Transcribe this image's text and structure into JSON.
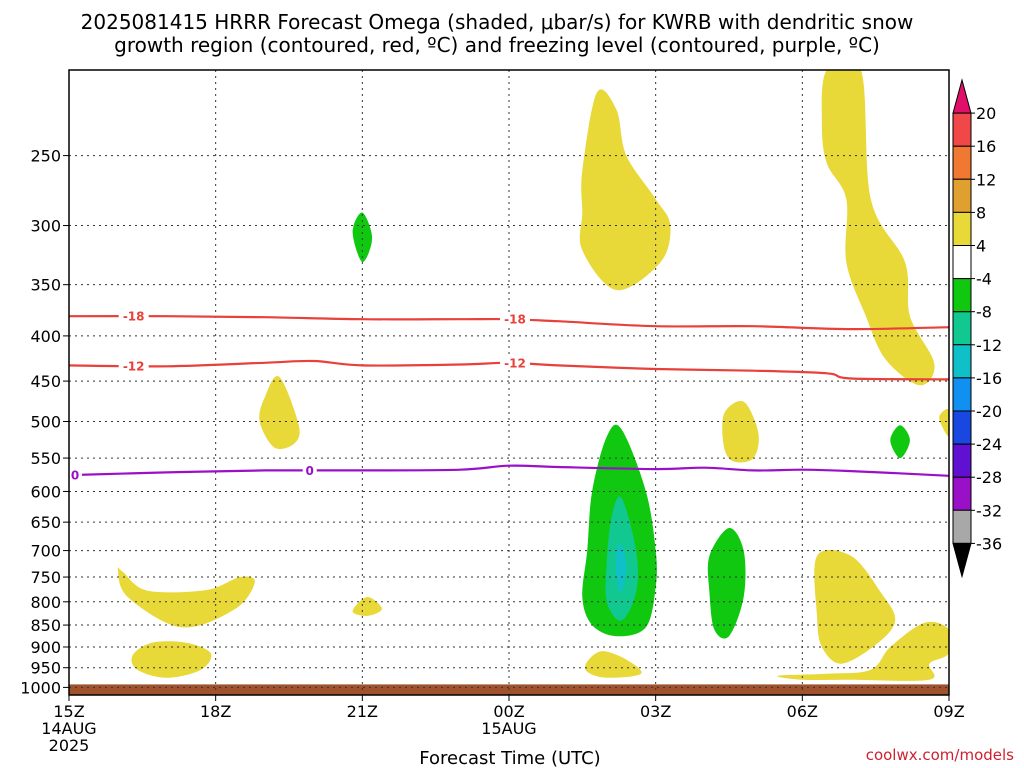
{
  "chart_data": {
    "type": "heatmap",
    "title_line1": "2025081415 HRRR Forecast Omega (shaded, μbar/s) for KWRB with dendritic snow",
    "title_line2": "growth region (contoured, red, ºC) and freezing level (contoured, purple, ºC)",
    "xlabel": "Forecast Time (UTC)",
    "credit": "coolwx.com/models",
    "x_ticks": [
      {
        "hour": 0,
        "label": "15Z",
        "sub": [
          "14AUG",
          "2025"
        ]
      },
      {
        "hour": 3,
        "label": "18Z",
        "sub": []
      },
      {
        "hour": 6,
        "label": "21Z",
        "sub": []
      },
      {
        "hour": 9,
        "label": "00Z",
        "sub": [
          "15AUG"
        ]
      },
      {
        "hour": 12,
        "label": "03Z",
        "sub": []
      },
      {
        "hour": 15,
        "label": "06Z",
        "sub": []
      },
      {
        "hour": 18,
        "label": "09Z",
        "sub": []
      }
    ],
    "xlim_hours": [
      0,
      18
    ],
    "y_ticks": [
      "250",
      "300",
      "350",
      "400",
      "450",
      "500",
      "550",
      "600",
      "650",
      "700",
      "750",
      "800",
      "850",
      "900",
      "950",
      "1000"
    ],
    "ylim_mb": [
      200,
      1020
    ],
    "y_scale": "log",
    "grid": true,
    "ground_level_mb": 1000,
    "colorbar": {
      "labels": [
        "20",
        "16",
        "12",
        "8",
        "4",
        "-4",
        "-8",
        "-12",
        "-16",
        "-20",
        "-24",
        "-28",
        "-32",
        "-36"
      ],
      "colors": [
        "#e0106a",
        "#f04848",
        "#f07830",
        "#e0a030",
        "#e8d838",
        "#ffffff",
        "#10c810",
        "#10c890",
        "#10c0c8",
        "#1090f0",
        "#1848e0",
        "#6010d0",
        "#9a10c8",
        "#a8a8a8",
        "#000000"
      ]
    },
    "contours": [
      {
        "name": "-18",
        "color": "#e8403a",
        "label_hours": [
          1.2,
          9.0
        ],
        "points": [
          [
            0,
            380
          ],
          [
            2,
            380
          ],
          [
            4,
            381
          ],
          [
            6,
            383
          ],
          [
            8,
            383
          ],
          [
            9,
            383
          ],
          [
            10,
            385
          ],
          [
            12,
            390
          ],
          [
            14,
            390
          ],
          [
            16,
            393
          ],
          [
            18,
            391
          ]
        ]
      },
      {
        "name": "-12",
        "color": "#e8403a",
        "label_hours": [
          1.2,
          9.0
        ],
        "points": [
          [
            0,
            432
          ],
          [
            2,
            433
          ],
          [
            4,
            429
          ],
          [
            5,
            427
          ],
          [
            6,
            432
          ],
          [
            8,
            431
          ],
          [
            9,
            429
          ],
          [
            10,
            432
          ],
          [
            12,
            436
          ],
          [
            14,
            438
          ],
          [
            15.5,
            441
          ],
          [
            16,
            447
          ],
          [
            18,
            448
          ]
        ]
      },
      {
        "name": "0",
        "color": "#9a10c8",
        "label_hours": [
          0.0,
          4.8
        ],
        "points": [
          [
            0,
            575
          ],
          [
            2,
            571
          ],
          [
            4,
            568
          ],
          [
            6,
            568
          ],
          [
            8,
            567
          ],
          [
            9,
            561
          ],
          [
            10,
            563
          ],
          [
            12,
            566
          ],
          [
            13,
            564
          ],
          [
            14,
            568
          ],
          [
            15,
            567
          ],
          [
            16,
            569
          ],
          [
            18,
            576
          ]
        ]
      }
    ],
    "omega_regions": [
      {
        "level": "4",
        "color": "#e8d838",
        "points": [
          [
            1.0,
            735
          ],
          [
            1.2,
            790
          ],
          [
            2.3,
            855
          ],
          [
            3.4,
            815
          ],
          [
            3.8,
            760
          ],
          [
            3.5,
            750
          ],
          [
            2.8,
            776
          ],
          [
            1.6,
            777
          ],
          [
            1.1,
            740
          ]
        ]
      },
      {
        "level": "4",
        "color": "#e8d838",
        "points": [
          [
            1.3,
            920
          ],
          [
            1.7,
            890
          ],
          [
            2.4,
            890
          ],
          [
            2.9,
            915
          ],
          [
            2.7,
            955
          ],
          [
            2.0,
            975
          ],
          [
            1.4,
            955
          ]
        ]
      },
      {
        "level": "4",
        "color": "#e8d838",
        "points": [
          [
            4.0,
            470
          ],
          [
            4.3,
            445
          ],
          [
            4.7,
            505
          ],
          [
            4.6,
            530
          ],
          [
            4.2,
            535
          ],
          [
            3.9,
            500
          ]
        ]
      },
      {
        "level": "4",
        "color": "#e8d838",
        "points": [
          [
            5.8,
            820
          ],
          [
            6.1,
            790
          ],
          [
            6.4,
            815
          ],
          [
            6.1,
            830
          ]
        ]
      },
      {
        "level": "4",
        "color": "#e8d838",
        "points": [
          [
            10.5,
            260
          ],
          [
            10.8,
            212
          ],
          [
            11.2,
            222
          ],
          [
            11.4,
            250
          ],
          [
            12.0,
            280
          ],
          [
            12.3,
            300
          ],
          [
            12.1,
            330
          ],
          [
            11.2,
            355
          ],
          [
            10.5,
            320
          ],
          [
            10.5,
            290
          ]
        ]
      },
      {
        "level": "4",
        "color": "#e8d838",
        "points": [
          [
            10.6,
            935
          ],
          [
            10.9,
            910
          ],
          [
            11.4,
            930
          ],
          [
            11.7,
            965
          ],
          [
            11.0,
            975
          ],
          [
            10.6,
            960
          ]
        ]
      },
      {
        "level": "4",
        "color": "#e8d838",
        "points": [
          [
            13.4,
            490
          ],
          [
            13.8,
            475
          ],
          [
            14.1,
            515
          ],
          [
            14.0,
            550
          ],
          [
            13.6,
            555
          ],
          [
            13.4,
            535
          ]
        ]
      },
      {
        "level": "4",
        "color": "#e8d838",
        "points": [
          [
            15.4,
            230
          ],
          [
            15.5,
            200
          ],
          [
            16.2,
            200
          ],
          [
            16.4,
            280
          ],
          [
            17.1,
            330
          ],
          [
            17.2,
            380
          ],
          [
            17.7,
            430
          ],
          [
            17.4,
            455
          ],
          [
            16.7,
            425
          ],
          [
            16.3,
            380
          ],
          [
            15.9,
            330
          ],
          [
            15.9,
            280
          ],
          [
            15.5,
            255
          ]
        ]
      },
      {
        "level": "4",
        "color": "#e8d838",
        "points": [
          [
            14.5,
            970
          ],
          [
            15.5,
            965
          ],
          [
            16.4,
            955
          ],
          [
            16.8,
            900
          ],
          [
            17.5,
            845
          ],
          [
            18.0,
            860
          ],
          [
            18.0,
            915
          ],
          [
            17.6,
            940
          ],
          [
            17.6,
            980
          ],
          [
            16.0,
            980
          ],
          [
            15.0,
            980
          ]
        ]
      },
      {
        "level": "4",
        "color": "#e8d838",
        "points": [
          [
            15.3,
            710
          ],
          [
            16.0,
            710
          ],
          [
            16.6,
            780
          ],
          [
            16.9,
            840
          ],
          [
            16.5,
            895
          ],
          [
            15.8,
            940
          ],
          [
            15.4,
            900
          ],
          [
            15.3,
            830
          ]
        ]
      },
      {
        "level": "4",
        "color": "#e8d838",
        "points": [
          [
            18.0,
            485
          ],
          [
            17.8,
            495
          ],
          [
            18.0,
            520
          ]
        ]
      },
      {
        "level": "-4",
        "color": "#10c810",
        "points": [
          [
            5.8,
            305
          ],
          [
            6.0,
            290
          ],
          [
            6.2,
            310
          ],
          [
            6.0,
            330
          ]
        ]
      },
      {
        "level": "-4",
        "color": "#10c810",
        "points": [
          [
            11.0,
            520
          ],
          [
            11.3,
            510
          ],
          [
            11.8,
            600
          ],
          [
            12.0,
            700
          ],
          [
            12.0,
            770
          ],
          [
            11.8,
            855
          ],
          [
            11.2,
            875
          ],
          [
            10.7,
            850
          ],
          [
            10.5,
            790
          ],
          [
            10.6,
            700
          ],
          [
            10.7,
            600
          ]
        ]
      },
      {
        "level": "-4",
        "color": "#10c810",
        "points": [
          [
            13.1,
            710
          ],
          [
            13.5,
            660
          ],
          [
            13.8,
            700
          ],
          [
            13.8,
            790
          ],
          [
            13.5,
            875
          ],
          [
            13.2,
            860
          ],
          [
            13.1,
            780
          ]
        ]
      },
      {
        "level": "-4",
        "color": "#10c810",
        "points": [
          [
            16.8,
            525
          ],
          [
            17.0,
            505
          ],
          [
            17.2,
            525
          ],
          [
            17.0,
            550
          ]
        ]
      },
      {
        "level": "-8",
        "color": "#10c890",
        "points": [
          [
            11.1,
            640
          ],
          [
            11.3,
            610
          ],
          [
            11.6,
            700
          ],
          [
            11.6,
            780
          ],
          [
            11.3,
            840
          ],
          [
            11.0,
            800
          ],
          [
            11.0,
            720
          ]
        ]
      },
      {
        "level": "-12",
        "color": "#10c0c8",
        "points": [
          [
            11.2,
            700
          ],
          [
            11.3,
            690
          ],
          [
            11.4,
            730
          ],
          [
            11.3,
            780
          ],
          [
            11.2,
            750
          ]
        ]
      }
    ]
  }
}
